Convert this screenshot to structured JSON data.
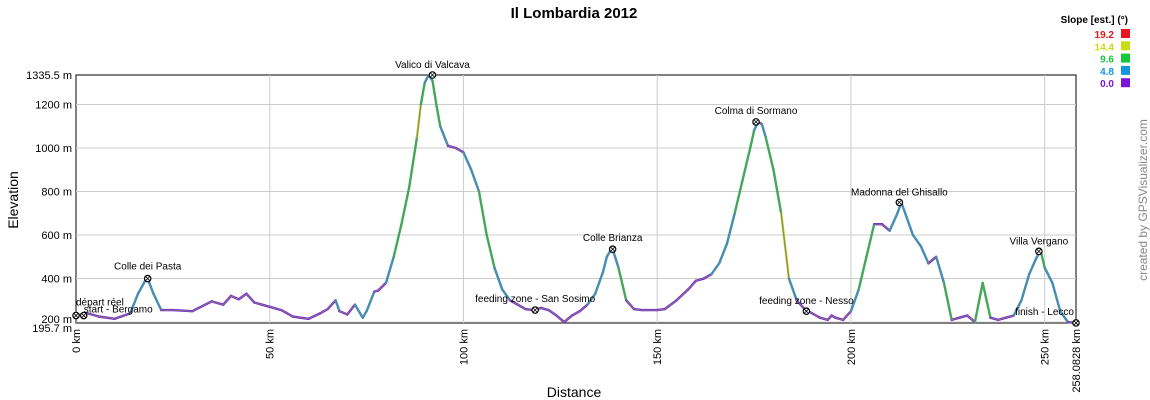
{
  "chart_data": {
    "type": "line",
    "title": "Il Lombardia 2012",
    "xlabel": "Distance",
    "ylabel": "Elevation",
    "xlim": [
      0,
      258.0828
    ],
    "ylim": [
      195.7,
      1335.5
    ],
    "x_ticks": [
      {
        "value": 0,
        "label": "0 km"
      },
      {
        "value": 50,
        "label": "50 km"
      },
      {
        "value": 100,
        "label": "100 km"
      },
      {
        "value": 150,
        "label": "150 km"
      },
      {
        "value": 200,
        "label": "200 km"
      },
      {
        "value": 250,
        "label": "250 km"
      },
      {
        "value": 258.0828,
        "label": "258.0828 km"
      }
    ],
    "y_ticks": [
      {
        "value": 195.7,
        "label": "195.7 m"
      },
      {
        "value": 200,
        "label": "200 m"
      },
      {
        "value": 400,
        "label": "400 m"
      },
      {
        "value": 600,
        "label": "600 m"
      },
      {
        "value": 800,
        "label": "800 m"
      },
      {
        "value": 1000,
        "label": "1000 m"
      },
      {
        "value": 1200,
        "label": "1200 m"
      },
      {
        "value": 1335.5,
        "label": "1335.5 m"
      }
    ],
    "series": [
      {
        "x": [
          0,
          3,
          6,
          10,
          14,
          16,
          18,
          18.5,
          20,
          22,
          25,
          30,
          35,
          38,
          40,
          42,
          44,
          46,
          48,
          50,
          53,
          56,
          60,
          63,
          65,
          67,
          68,
          70,
          72,
          74,
          75,
          77,
          78,
          80,
          82,
          84,
          86,
          88,
          89,
          90,
          91,
          92,
          93,
          94,
          96,
          98,
          100,
          102,
          104,
          106,
          108,
          110,
          112,
          114,
          116,
          118,
          120,
          122,
          124,
          126,
          128,
          130,
          132,
          134,
          136,
          137,
          138,
          138.5,
          140,
          142,
          144,
          146,
          150,
          152,
          155,
          158,
          160,
          162,
          164,
          166,
          168,
          170,
          172,
          174,
          175,
          176,
          177,
          178,
          180,
          182,
          184,
          186,
          188,
          189,
          190,
          192,
          194,
          195,
          196,
          198,
          200,
          202,
          204,
          206,
          208,
          210,
          212,
          213,
          214,
          216,
          218,
          220,
          222,
          224,
          226,
          228,
          230,
          232,
          234,
          236,
          238,
          240,
          242,
          244,
          246,
          248,
          249,
          250,
          252,
          254,
          256,
          258.08
        ],
        "y": [
          230,
          240,
          225,
          215,
          240,
          330,
          395,
          400,
          330,
          255,
          255,
          250,
          295,
          280,
          320,
          305,
          330,
          290,
          280,
          270,
          255,
          225,
          215,
          240,
          260,
          300,
          250,
          235,
          280,
          220,
          250,
          340,
          345,
          380,
          500,
          650,
          820,
          1050,
          1200,
          1300,
          1335,
          1310,
          1200,
          1100,
          1010,
          1000,
          980,
          900,
          800,
          600,
          450,
          350,
          300,
          280,
          260,
          255,
          265,
          255,
          230,
          200,
          230,
          250,
          280,
          330,
          430,
          500,
          530,
          535,
          450,
          300,
          260,
          255,
          255,
          260,
          300,
          350,
          390,
          400,
          420,
          470,
          560,
          700,
          850,
          1000,
          1080,
          1120,
          1110,
          1050,
          900,
          700,
          400,
          300,
          260,
          250,
          240,
          220,
          210,
          230,
          220,
          210,
          250,
          350,
          500,
          650,
          650,
          620,
          700,
          750,
          700,
          600,
          550,
          470,
          500,
          380,
          210,
          220,
          230,
          200,
          380,
          220,
          210,
          220,
          230,
          300,
          420,
          500,
          525,
          450,
          380,
          250,
          200,
          196
        ]
      }
    ],
    "waypoints": [
      {
        "x": 0,
        "y": 230,
        "label": "départ réel"
      },
      {
        "x": 2,
        "y": 230,
        "label": "start - Bergamo"
      },
      {
        "x": 18.5,
        "y": 400,
        "label": "Colle dei Pasta"
      },
      {
        "x": 92,
        "y": 1335.5,
        "label": "Valico di Valcava"
      },
      {
        "x": 118.5,
        "y": 255,
        "label": "feeding zone - San Sosimo"
      },
      {
        "x": 138.5,
        "y": 535,
        "label": "Colle Brianza"
      },
      {
        "x": 175.5,
        "y": 1120,
        "label": "Colma di Sormano"
      },
      {
        "x": 188.5,
        "y": 250,
        "label": "feeding zone - Nesso"
      },
      {
        "x": 212.5,
        "y": 750,
        "label": "Madonna del Ghisallo"
      },
      {
        "x": 248.5,
        "y": 525,
        "label": "Villa Vergano"
      },
      {
        "x": 258.08,
        "y": 196,
        "label": "finish - Lecco"
      }
    ],
    "legend": {
      "title": "Slope [est.] (°)",
      "placement": "top-right",
      "items": [
        {
          "label": "19.2",
          "color": "#e8141e"
        },
        {
          "label": "14.4",
          "color": "#c8dc14"
        },
        {
          "label": "9.6",
          "color": "#14c83c"
        },
        {
          "label": "4.8",
          "color": "#1496dc"
        },
        {
          "label": "0.0",
          "color": "#7814dc"
        }
      ]
    },
    "line_color": "#808080",
    "grid": true,
    "credit": "created by GPSVisualizer.com"
  }
}
